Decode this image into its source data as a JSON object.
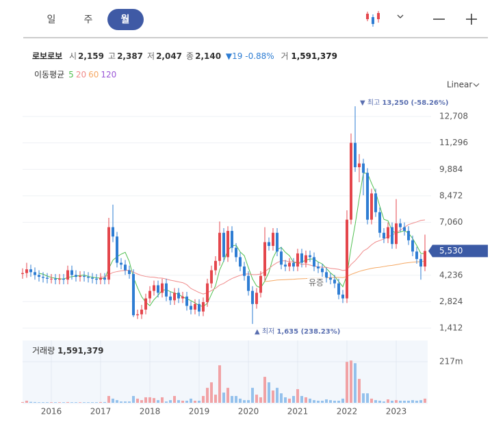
{
  "header": {
    "tabs": [
      "일",
      "주",
      "월"
    ]
  },
  "info": {
    "name": "로보로보",
    "fields": [
      {
        "key": "시",
        "value": "2,159"
      },
      {
        "key": "고",
        "value": "2,387"
      },
      {
        "key": "저",
        "value": "2,047"
      },
      {
        "key": "종",
        "value": "2,140"
      }
    ],
    "change": "19",
    "change_pct": "-0.88%",
    "volume_key": "거",
    "volume_value": "1,591,379"
  },
  "ma_label": "이동평균",
  "scale_label": "Linear",
  "annotations": {
    "max_label": "최고",
    "max_value": "13,250 (-58.26%)",
    "min_label": "최저",
    "min_value": "1,635 (238.23%)",
    "note": "유증"
  },
  "chart_data": {
    "type": "candlestick",
    "up_color": "#e4464c",
    "down_color": "#2e7dd3",
    "xticks": [
      "2016",
      "2017",
      "2018",
      "2019",
      "2020",
      "2021",
      "2022",
      "2023"
    ],
    "ylim": [
      1010,
      13805
    ],
    "yticks": [
      {
        "value": 1412,
        "label": "1,412"
      },
      {
        "value": 2824,
        "label": "2,824"
      },
      {
        "value": 4236,
        "label": "4,236"
      },
      {
        "value": 7060,
        "label": "7,060"
      },
      {
        "value": 8472,
        "label": "8,472"
      },
      {
        "value": 9884,
        "label": "9,884"
      },
      {
        "value": 11296,
        "label": "11,296"
      },
      {
        "value": 12708,
        "label": "12,708"
      }
    ],
    "grid": true,
    "last_price": 5530,
    "last_price_label": "5,530",
    "last_price_color": "#3b5aa5",
    "open": [
      4300,
      4350,
      4550,
      4400,
      4250,
      4150,
      4100,
      4050,
      4050,
      4000,
      4050,
      4000,
      4500,
      4250,
      4150,
      4200,
      4150,
      4100,
      4050,
      4000,
      4100,
      4000,
      6800,
      6300,
      4900,
      4800,
      4500,
      4300,
      2100,
      2150,
      2400,
      3000,
      3400,
      3700,
      3300,
      3800,
      3100,
      2900,
      3300,
      3000,
      3100,
      2600,
      2400,
      2700,
      2300,
      2800,
      3800,
      4500,
      5000,
      6500,
      5200,
      6600,
      5700,
      5200,
      4700,
      4200,
      3400,
      2700,
      3300,
      4200,
      6000,
      5800,
      6500,
      5500,
      4800,
      4700,
      4900,
      4700,
      5400,
      4900,
      5300,
      5200,
      4700,
      4600,
      4400,
      4100,
      4000,
      3800,
      3200,
      3000,
      7200,
      11300,
      10000,
      10200,
      9700,
      7200,
      8600,
      7600,
      6500,
      6200,
      6800,
      5900,
      7000,
      6800,
      6600,
      6100,
      5500,
      5100,
      4700
    ],
    "high": [
      4600,
      4900,
      4800,
      4650,
      4500,
      4400,
      4350,
      4300,
      4300,
      4300,
      4300,
      4750,
      4750,
      4500,
      4450,
      4450,
      4400,
      4350,
      4300,
      4350,
      4350,
      7300,
      8000,
      6550,
      5150,
      5050,
      4750,
      4550,
      2400,
      2650,
      3250,
      3650,
      3950,
      3950,
      4050,
      4050,
      3350,
      3550,
      3550,
      3350,
      3350,
      2850,
      2950,
      2950,
      3050,
      4050,
      4750,
      5250,
      7100,
      6750,
      6850,
      6850,
      5950,
      5450,
      4950,
      4450,
      3650,
      3550,
      4450,
      6800,
      6250,
      6750,
      6750,
      5750,
      5050,
      5150,
      5150,
      5650,
      5650,
      5550,
      5550,
      5450,
      4950,
      4850,
      4650,
      4350,
      4250,
      4050,
      3450,
      7700,
      11800,
      13250,
      10700,
      10450,
      9950,
      8850,
      8850,
      7850,
      6750,
      7050,
      7050,
      8300,
      7250,
      7050,
      6850,
      6350,
      5750,
      5350,
      6400
    ],
    "low": [
      4050,
      4100,
      4150,
      4000,
      3900,
      3850,
      3800,
      3800,
      3750,
      3750,
      3750,
      3750,
      4000,
      3900,
      3900,
      3900,
      3850,
      3800,
      3750,
      3750,
      3750,
      3750,
      6000,
      4650,
      4550,
      4250,
      4050,
      2000,
      1900,
      1900,
      2150,
      2750,
      3150,
      3050,
      3050,
      2850,
      2650,
      2650,
      2750,
      2750,
      2350,
      2150,
      2150,
      2050,
      2050,
      2550,
      3550,
      4250,
      4750,
      4950,
      4950,
      5450,
      4950,
      4450,
      3950,
      3150,
      1635,
      2450,
      3050,
      3950,
      5550,
      5550,
      5250,
      4550,
      4450,
      4450,
      4450,
      4450,
      4650,
      4650,
      4950,
      4450,
      4350,
      4150,
      3850,
      3750,
      3550,
      2950,
      2750,
      2750,
      6950,
      9750,
      9200,
      8500,
      6950,
      6950,
      7350,
      6250,
      5950,
      5950,
      5650,
      5650,
      6550,
      6350,
      5850,
      5250,
      4850,
      4000,
      4450
    ],
    "close": [
      4350,
      4550,
      4400,
      4250,
      4150,
      4100,
      4050,
      4050,
      4000,
      4050,
      4000,
      4500,
      4250,
      4150,
      4200,
      4150,
      4100,
      4050,
      4000,
      4100,
      4000,
      6800,
      6300,
      4900,
      4800,
      4500,
      4300,
      2100,
      2150,
      2400,
      3000,
      3400,
      3700,
      3300,
      3800,
      3100,
      2900,
      3300,
      3000,
      3100,
      2600,
      2400,
      2700,
      2300,
      2800,
      3800,
      4500,
      5000,
      6500,
      5200,
      6600,
      5700,
      5200,
      4700,
      4200,
      3400,
      2700,
      3300,
      4200,
      6000,
      5800,
      6500,
      5500,
      4800,
      4700,
      4900,
      4700,
      5400,
      4900,
      5300,
      5200,
      4700,
      4600,
      4400,
      4100,
      4000,
      3800,
      3200,
      3000,
      7200,
      11300,
      10000,
      10200,
      9700,
      7200,
      8600,
      7600,
      6500,
      6200,
      6800,
      5900,
      7000,
      6800,
      6600,
      6100,
      5500,
      5100,
      4700,
      5530
    ],
    "moving_averages": [
      {
        "name": "5",
        "color": "#4fbf4f",
        "values": [
          null,
          null,
          null,
          null,
          4340,
          4290,
          4190,
          4120,
          4070,
          4050,
          4030,
          4120,
          4160,
          4190,
          4220,
          4250,
          4170,
          4130,
          4100,
          4080,
          4050,
          4590,
          5040,
          5220,
          5360,
          5460,
          4960,
          4120,
          3570,
          3090,
          2790,
          2610,
          2930,
          3160,
          3440,
          3460,
          3360,
          3280,
          3220,
          3080,
          2980,
          2880,
          2760,
          2620,
          2560,
          2740,
          3220,
          3680,
          4520,
          5000,
          5560,
          5800,
          5840,
          5480,
          5280,
          4640,
          4040,
          3660,
          3560,
          3920,
          4400,
          5160,
          5600,
          5720,
          5460,
          5280,
          4920,
          4900,
          4940,
          5040,
          5100,
          5100,
          4940,
          4840,
          4600,
          4360,
          4180,
          3900,
          3620,
          4240,
          5700,
          6940,
          8340,
          9680,
          9680,
          9140,
          8660,
          7920,
          7220,
          7140,
          6600,
          6480,
          6540,
          6620,
          6480,
          6200,
          5820,
          5400,
          5390
        ]
      },
      {
        "name": "20",
        "color": "#f08a8a",
        "values": [
          null,
          null,
          null,
          null,
          null,
          null,
          null,
          null,
          null,
          null,
          null,
          null,
          null,
          null,
          null,
          null,
          null,
          null,
          null,
          4150,
          4130,
          4270,
          4380,
          4430,
          4470,
          4490,
          4500,
          4400,
          4300,
          4220,
          4170,
          4140,
          4130,
          4090,
          4080,
          4030,
          3970,
          3930,
          3880,
          3840,
          3730,
          3530,
          3420,
          3310,
          3230,
          3300,
          3420,
          3540,
          3710,
          3800,
          3940,
          4060,
          4150,
          4230,
          4290,
          4310,
          4270,
          4270,
          4300,
          4430,
          4590,
          4770,
          4910,
          5000,
          5010,
          4950,
          4960,
          4910,
          4810,
          4840,
          4780,
          4720,
          4680,
          4660,
          4660,
          4600,
          4580,
          4550,
          4490,
          4520,
          4810,
          5010,
          5260,
          5530,
          5660,
          5860,
          6010,
          6090,
          6170,
          6300,
          6370,
          6510,
          6640,
          6790,
          6940,
          7010,
          7080,
          7160,
          7190
        ]
      },
      {
        "name": "60",
        "color": "#f5a863",
        "values": [
          null,
          null,
          null,
          null,
          null,
          null,
          null,
          null,
          null,
          null,
          null,
          null,
          null,
          null,
          null,
          null,
          null,
          null,
          null,
          null,
          null,
          null,
          null,
          null,
          null,
          null,
          null,
          null,
          null,
          null,
          null,
          null,
          null,
          null,
          null,
          null,
          null,
          null,
          null,
          null,
          null,
          null,
          null,
          null,
          null,
          null,
          null,
          null,
          null,
          null,
          null,
          null,
          null,
          null,
          null,
          null,
          null,
          null,
          null,
          3900,
          3920,
          3950,
          3980,
          3990,
          4000,
          4010,
          4020,
          4040,
          4050,
          4060,
          4080,
          4090,
          4090,
          4100,
          4110,
          4110,
          4120,
          4120,
          4110,
          4170,
          4280,
          4360,
          4440,
          4500,
          4550,
          4600,
          4640,
          4660,
          4700,
          4740,
          4760,
          4800,
          4840,
          4880,
          4910,
          4930,
          4950,
          4960,
          4990
        ]
      },
      {
        "name": "120",
        "color": "#9a55d6"
      }
    ],
    "volume": {
      "label": "거래량",
      "value_label": "1,591,379",
      "up_color": "#f1a2a5",
      "down_color": "#94c1ec",
      "ylim": [
        0,
        318
      ],
      "yticks": [
        {
          "value": 217,
          "label": "217m"
        }
      ],
      "values": [
        4,
        11,
        5,
        4,
        3,
        3,
        3,
        3,
        3,
        3,
        3,
        4,
        3,
        3,
        3,
        3,
        3,
        3,
        3,
        4,
        4,
        36,
        22,
        14,
        7,
        7,
        7,
        36,
        22,
        14,
        29,
        29,
        25,
        14,
        29,
        7,
        14,
        36,
        14,
        11,
        11,
        22,
        11,
        11,
        36,
        79,
        108,
        43,
        198,
        54,
        79,
        36,
        36,
        22,
        14,
        14,
        79,
        43,
        29,
        137,
        108,
        65,
        79,
        50,
        29,
        22,
        36,
        72,
        36,
        29,
        22,
        14,
        11,
        11,
        18,
        14,
        11,
        11,
        22,
        216,
        223,
        209,
        126,
        50,
        50,
        22,
        14,
        11,
        7,
        18,
        11,
        14,
        11,
        11,
        11,
        14,
        11,
        14,
        22
      ]
    }
  }
}
